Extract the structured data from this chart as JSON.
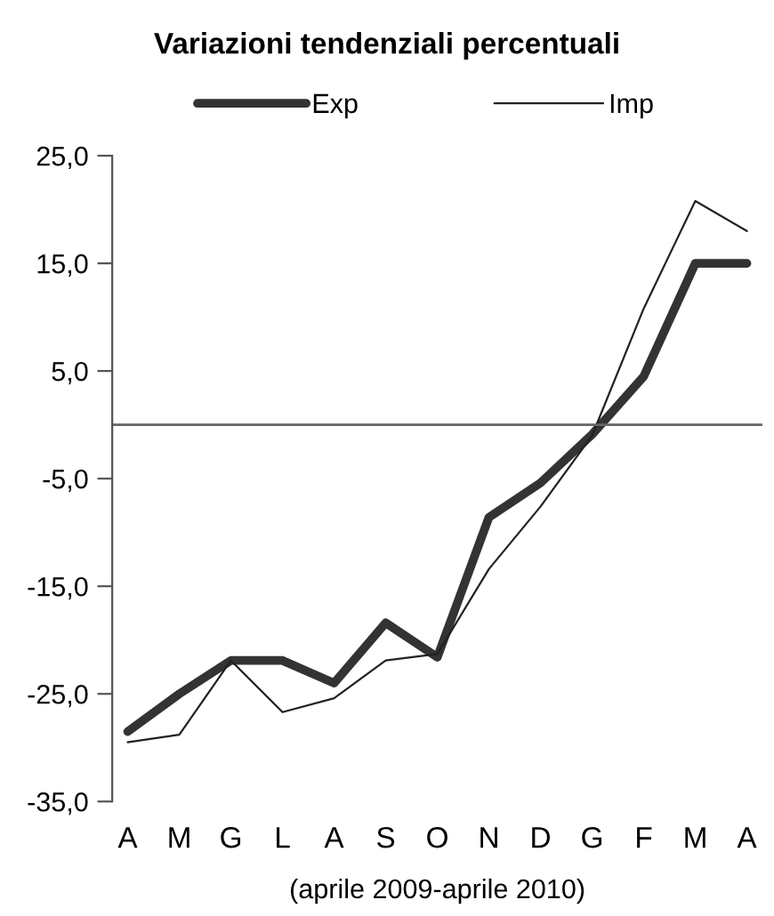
{
  "chart_data": {
    "type": "line",
    "title": "Variazioni tendenziali percentuali",
    "xlabel": "(aprile 2009-aprile 2010)",
    "categories": [
      "A",
      "M",
      "G",
      "L",
      "A",
      "S",
      "O",
      "N",
      "D",
      "G",
      "F",
      "M",
      "A"
    ],
    "series": [
      {
        "name": "Exp",
        "color": "#333333",
        "values": [
          -28.5,
          -25.0,
          -21.9,
          -21.9,
          -24.0,
          -18.4,
          -21.6,
          -8.6,
          -5.4,
          -0.9,
          4.5,
          15.0,
          15.0
        ]
      },
      {
        "name": "Imp",
        "color": "#222222",
        "values": [
          -29.5,
          -28.8,
          -21.9,
          -26.7,
          -25.4,
          -21.9,
          -21.3,
          -13.4,
          -7.6,
          -1.0,
          10.8,
          20.8,
          18.0
        ]
      }
    ],
    "ylim": [
      -35,
      25
    ],
    "yticks": [
      {
        "value": -35,
        "label": "-35,0"
      },
      {
        "value": -25,
        "label": "-25,0"
      },
      {
        "value": -15,
        "label": "-15,0"
      },
      {
        "value": -5,
        "label": "-5,0"
      },
      {
        "value": 5,
        "label": "5,0"
      },
      {
        "value": 15,
        "label": "15,0"
      },
      {
        "value": 25,
        "label": "25,0"
      }
    ],
    "ref_lines": [
      {
        "axis": "y",
        "value": 0,
        "color": "#666666"
      }
    ],
    "grid": false,
    "legend": "top",
    "marker": "none",
    "line_style": "solid"
  }
}
